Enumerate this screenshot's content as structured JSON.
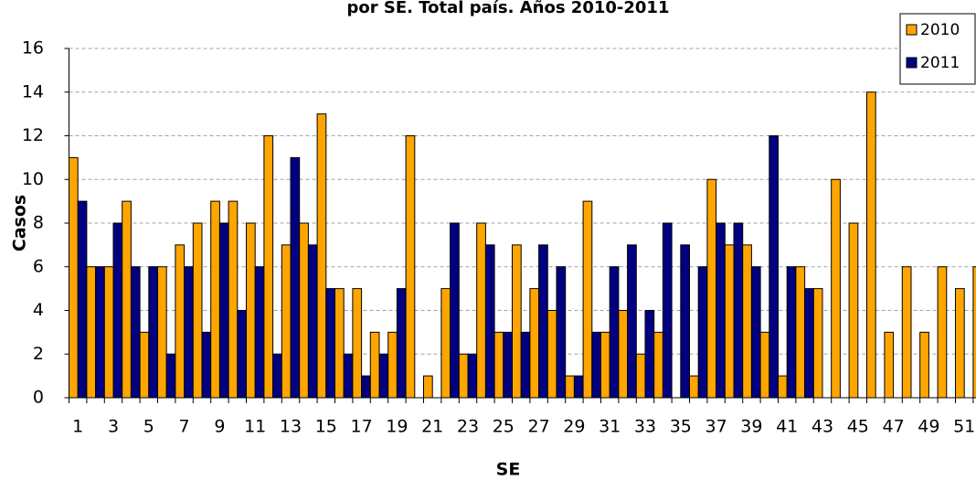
{
  "chart_data": {
    "type": "bar",
    "title": "por SE. Total país. Años 2010-2011",
    "x_label": "SE",
    "y_label": "Casos",
    "categories": [
      1,
      null,
      3,
      null,
      5,
      null,
      7,
      null,
      9,
      null,
      11,
      null,
      13,
      null,
      15,
      null,
      17,
      null,
      19,
      null,
      21,
      null,
      23,
      null,
      25,
      null,
      27,
      null,
      29,
      null,
      31,
      null,
      33,
      null,
      35,
      null,
      37,
      null,
      39,
      null,
      41,
      null,
      43,
      null,
      45,
      null,
      47,
      null,
      49,
      null,
      51,
      null
    ],
    "series": [
      {
        "name": "2010",
        "color": "#ffa500",
        "values": [
          11,
          6,
          6,
          9,
          3,
          6,
          7,
          8,
          9,
          9,
          8,
          12,
          7,
          8,
          13,
          5,
          5,
          3,
          3,
          12,
          1,
          5,
          2,
          8,
          3,
          7,
          5,
          4,
          1,
          9,
          3,
          4,
          2,
          3,
          0,
          1,
          10,
          7,
          7,
          3,
          1,
          6,
          5,
          10,
          8,
          14,
          3,
          6,
          3,
          6,
          5,
          6
        ]
      },
      {
        "name": "2011",
        "color": "#000080",
        "values": [
          9,
          6,
          8,
          6,
          6,
          2,
          6,
          3,
          8,
          4,
          6,
          2,
          11,
          7,
          5,
          2,
          1,
          2,
          5,
          0,
          0,
          8,
          2,
          7,
          3,
          3,
          7,
          6,
          1,
          3,
          6,
          7,
          4,
          8,
          7,
          6,
          8,
          8,
          6,
          12,
          6,
          5,
          null,
          null,
          null,
          null,
          null,
          null,
          null,
          null,
          null,
          null
        ]
      }
    ],
    "ylim": [
      0,
      16
    ],
    "yticks": [
      0,
      2,
      4,
      6,
      8,
      10,
      12,
      14,
      16
    ],
    "grid": true,
    "legend": "top-right"
  }
}
